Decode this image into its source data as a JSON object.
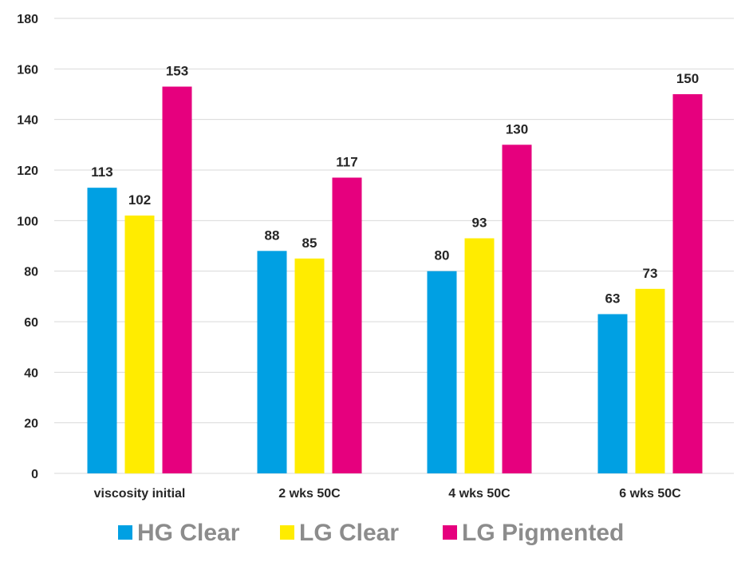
{
  "chart_data": {
    "type": "bar",
    "title": "",
    "xlabel": "",
    "ylabel": "",
    "ylim": [
      0,
      180
    ],
    "yticks": [
      0,
      20,
      40,
      60,
      80,
      100,
      120,
      140,
      160,
      180
    ],
    "grid": true,
    "legend_position": "bottom",
    "data_labels": true,
    "categories": [
      "viscosity initial",
      "2 wks 50C",
      "4 wks 50C",
      "6 wks 50C"
    ],
    "series": [
      {
        "name": "HG Clear",
        "color": "#00A0E3",
        "values": [
          113,
          88,
          80,
          63
        ]
      },
      {
        "name": "LG Clear",
        "color": "#FFEC00",
        "values": [
          102,
          85,
          93,
          73
        ]
      },
      {
        "name": "LG Pigmented",
        "color": "#E6007E",
        "values": [
          153,
          117,
          130,
          150
        ]
      }
    ]
  }
}
